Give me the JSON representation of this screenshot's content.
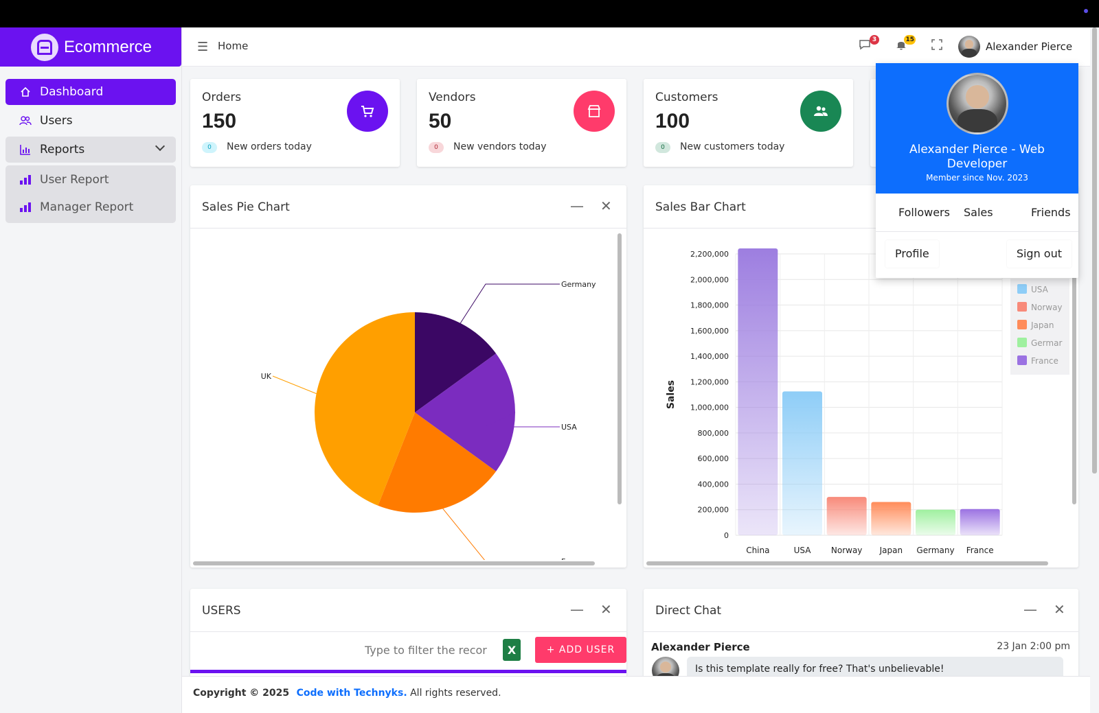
{
  "brand": {
    "name": "Ecommerce"
  },
  "sidebar": {
    "items": [
      {
        "label": "Dashboard",
        "icon": "home-icon"
      },
      {
        "label": "Users",
        "icon": "users-icon"
      },
      {
        "label": "Reports",
        "icon": "bar-chart-icon"
      }
    ],
    "sub_items": [
      {
        "label": "User Report",
        "icon": "bar-chart-icon"
      },
      {
        "label": "Manager Report",
        "icon": "bar-chart-icon"
      }
    ]
  },
  "header": {
    "breadcrumb": "Home",
    "messages_count": "3",
    "notifications_count": "15",
    "user_name": "Alexander Pierce"
  },
  "stats": [
    {
      "label": "Orders",
      "value": "150",
      "chip": "0",
      "sub": "New orders today",
      "color": "#6b12f0",
      "chip_bg": "#cff4fc",
      "chip_fg": "#0aa2c0",
      "icon": "cart-icon"
    },
    {
      "label": "Vendors",
      "value": "50",
      "chip": "0",
      "sub": "New vendors today",
      "color": "#ff3b6b",
      "chip_bg": "#f8d7da",
      "chip_fg": "#b02a37",
      "icon": "store-icon"
    },
    {
      "label": "Customers",
      "value": "100",
      "chip": "0",
      "sub": "New customers today",
      "color": "#198754",
      "chip_bg": "#d1e7dd",
      "chip_fg": "#146c43",
      "icon": "people-icon"
    }
  ],
  "pie_panel": {
    "title": "Sales Pie Chart"
  },
  "bar_panel": {
    "title": "Sales Bar Chart"
  },
  "users_panel": {
    "title": "USERS",
    "filter_placeholder": "Type to filter the records...",
    "add_label": "+ ADD USER"
  },
  "chat_panel": {
    "title": "Direct Chat",
    "sender": "Alexander Pierce",
    "time": "23 Jan 2:00 pm",
    "message": "Is this template really for free? That's unbelievable!"
  },
  "dropdown": {
    "name": "Alexander Pierce - Web Developer",
    "since": "Member since Nov. 2023",
    "stat_links": [
      "Followers",
      "Sales",
      "Friends"
    ],
    "profile": "Profile",
    "signout": "Sign out"
  },
  "footer": {
    "copyright": "Copyright © 2025",
    "link": "Code with Technyks.",
    "rights": "All rights reserved."
  },
  "chart_data": [
    {
      "type": "pie",
      "title": "",
      "categories": [
        "Germany",
        "USA",
        "France",
        "UK"
      ],
      "values": [
        15,
        20,
        21,
        44
      ],
      "colors": [
        "#3b0764",
        "#7b2cbf",
        "#ff7b00",
        "#ff9f00"
      ]
    },
    {
      "type": "bar",
      "title": "",
      "categories": [
        "China",
        "USA",
        "Norway",
        "Japan",
        "Germany",
        "France"
      ],
      "values": [
        2250000,
        1125000,
        300000,
        260000,
        200000,
        205000
      ],
      "colors": [
        "#9d7ee0",
        "#8ecdf7",
        "#f88a7a",
        "#ff8c5a",
        "#9ff09f",
        "#9b72e2"
      ],
      "xlabel": "",
      "ylabel": "Sales",
      "ylim": [
        0,
        2200000
      ],
      "yticks": [
        "0",
        "200,000",
        "400,000",
        "600,000",
        "800,000",
        "1,000,000",
        "1,200,000",
        "1,400,000",
        "1,600,000",
        "1,800,000",
        "2,000,000",
        "2,200,000"
      ],
      "legend": [
        "USA",
        "Norway",
        "Japan",
        "Germar",
        "France"
      ],
      "legend_colors": [
        "#8ecdf7",
        "#f88a7a",
        "#ff8c5a",
        "#9ff09f",
        "#9b72e2"
      ],
      "legend_position": "right",
      "grid": true
    }
  ]
}
